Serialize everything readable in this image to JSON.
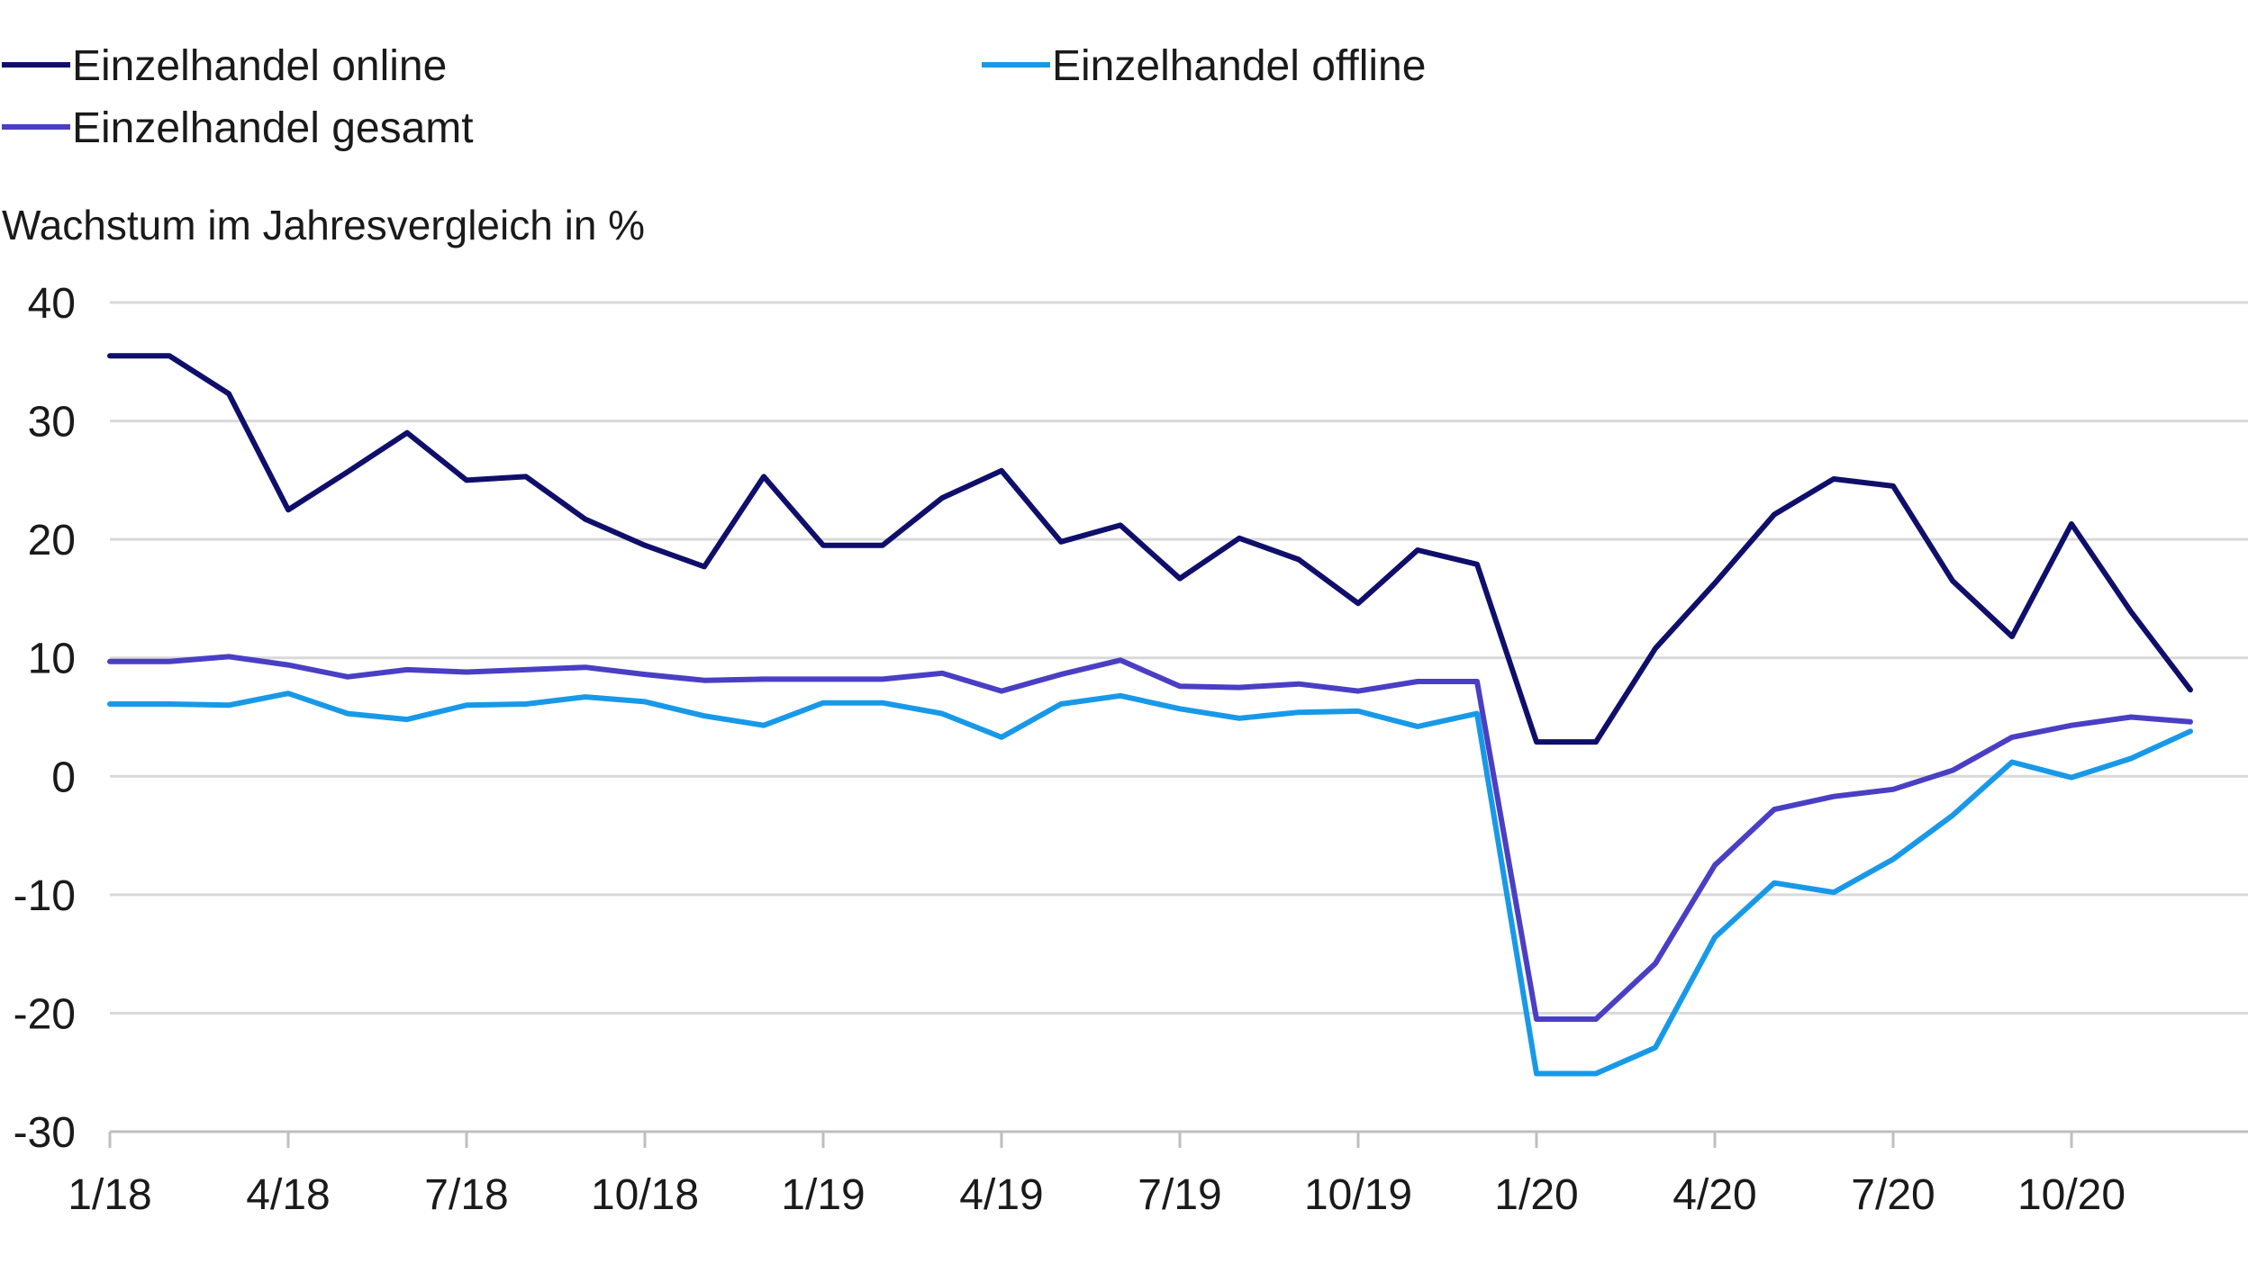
{
  "chart_data": {
    "type": "line",
    "title": "",
    "ylabel": "Wachstum im Jahresvergleich in %",
    "xlabel": "",
    "ylim": [
      -30,
      40
    ],
    "yticks": [
      -30,
      -20,
      -10,
      0,
      10,
      20,
      30,
      40
    ],
    "grid": true,
    "legend_position": "top-left",
    "x_tick_labels": [
      "1/18",
      "4/18",
      "7/18",
      "10/18",
      "1/19",
      "4/19",
      "7/19",
      "10/19",
      "1/20",
      "4/20",
      "7/20",
      "10/20"
    ],
    "x_tick_indices": [
      0,
      3,
      6,
      9,
      12,
      15,
      18,
      21,
      24,
      27,
      30,
      33
    ],
    "num_points": 36,
    "series": [
      {
        "name": "Einzelhandel online",
        "color": "#0f0f6b",
        "values": [
          35.5,
          35.5,
          32.3,
          22.5,
          25.7,
          29.0,
          25.0,
          25.3,
          21.7,
          19.5,
          17.7,
          25.3,
          19.5,
          19.5,
          23.5,
          25.8,
          19.8,
          21.2,
          16.7,
          20.1,
          18.3,
          14.6,
          19.1,
          17.9,
          2.9,
          2.9,
          10.8,
          16.3,
          22.1,
          25.1,
          24.5,
          16.5,
          11.8,
          21.3,
          13.9,
          7.3
        ]
      },
      {
        "name": "Einzelhandel offline",
        "color": "#1899e8",
        "values": [
          6.1,
          6.1,
          6.0,
          7.0,
          5.3,
          4.8,
          6.0,
          6.1,
          6.7,
          6.3,
          5.1,
          4.3,
          6.2,
          6.2,
          5.3,
          3.3,
          6.1,
          6.8,
          5.7,
          4.9,
          5.4,
          5.5,
          4.2,
          5.3,
          -25.1,
          -25.1,
          -22.9,
          -13.6,
          -9.0,
          -9.8,
          -7.0,
          -3.3,
          1.2,
          -0.1,
          1.5,
          3.8
        ]
      },
      {
        "name": "Einzelhandel gesamt",
        "color": "#4a3fc4",
        "values": [
          9.7,
          9.7,
          10.1,
          9.4,
          8.4,
          9.0,
          8.8,
          9.0,
          9.2,
          8.6,
          8.1,
          8.2,
          8.2,
          8.2,
          8.7,
          7.2,
          8.6,
          9.8,
          7.6,
          7.5,
          7.8,
          7.2,
          8.0,
          8.0,
          -20.5,
          -20.5,
          -15.8,
          -7.5,
          -2.8,
          -1.7,
          -1.1,
          0.5,
          3.3,
          4.3,
          5.0,
          4.6
        ]
      }
    ]
  }
}
